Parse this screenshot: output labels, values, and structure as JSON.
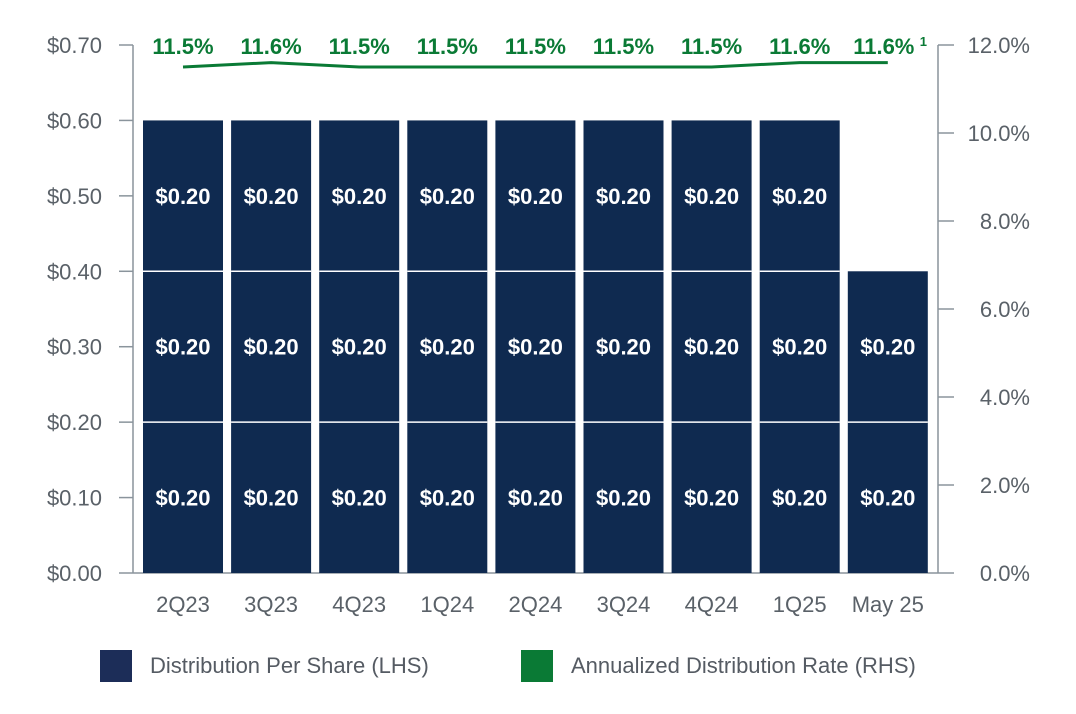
{
  "colors": {
    "bar": "#0f2a50",
    "rate_line": "#0a7a35",
    "axis": "#8a949c",
    "tick_text": "#5a6168",
    "bar_label": "#ffffff"
  },
  "chart_data": {
    "type": "bar",
    "stacked": true,
    "categories": [
      "2Q23",
      "3Q23",
      "4Q23",
      "1Q24",
      "2Q24",
      "3Q24",
      "4Q24",
      "1Q25",
      "May 25"
    ],
    "series": [
      {
        "name": "Distribution Per Share (LHS)",
        "axis": "left",
        "segments": [
          [
            0.2,
            0.2,
            0.2
          ],
          [
            0.2,
            0.2,
            0.2
          ],
          [
            0.2,
            0.2,
            0.2
          ],
          [
            0.2,
            0.2,
            0.2
          ],
          [
            0.2,
            0.2,
            0.2
          ],
          [
            0.2,
            0.2,
            0.2
          ],
          [
            0.2,
            0.2,
            0.2
          ],
          [
            0.2,
            0.2,
            0.2
          ],
          [
            0.2,
            0.2
          ]
        ],
        "segment_labels": "$0.20"
      },
      {
        "name": "Annualized Distribution Rate (RHS)",
        "axis": "right",
        "type": "line",
        "values": [
          11.5,
          11.6,
          11.5,
          11.5,
          11.5,
          11.5,
          11.5,
          11.6,
          11.6
        ],
        "labels": [
          "11.5%",
          "11.6%",
          "11.5%",
          "11.5%",
          "11.5%",
          "11.5%",
          "11.5%",
          "11.6%",
          "11.6%"
        ],
        "last_label_footnote": "1"
      }
    ],
    "y_left": {
      "min": 0,
      "max": 0.7,
      "ticks": [
        0,
        0.1,
        0.2,
        0.3,
        0.4,
        0.5,
        0.6,
        0.7
      ],
      "tick_labels": [
        "$0.00",
        "$0.10",
        "$0.20",
        "$0.30",
        "$0.40",
        "$0.50",
        "$0.60",
        "$0.70"
      ]
    },
    "y_right": {
      "min": 0,
      "max": 12,
      "ticks": [
        0,
        2,
        4,
        6,
        8,
        10,
        12
      ],
      "tick_labels": [
        "0.0%",
        "2.0%",
        "4.0%",
        "6.0%",
        "8.0%",
        "10.0%",
        "12.0%"
      ]
    },
    "legend_position": "bottom",
    "grid": false
  },
  "legend": {
    "items": [
      {
        "label": "Distribution Per Share (LHS)",
        "color": "#1c2d58"
      },
      {
        "label": "Annualized Distribution Rate (RHS)",
        "color": "#0a7a35"
      }
    ]
  }
}
